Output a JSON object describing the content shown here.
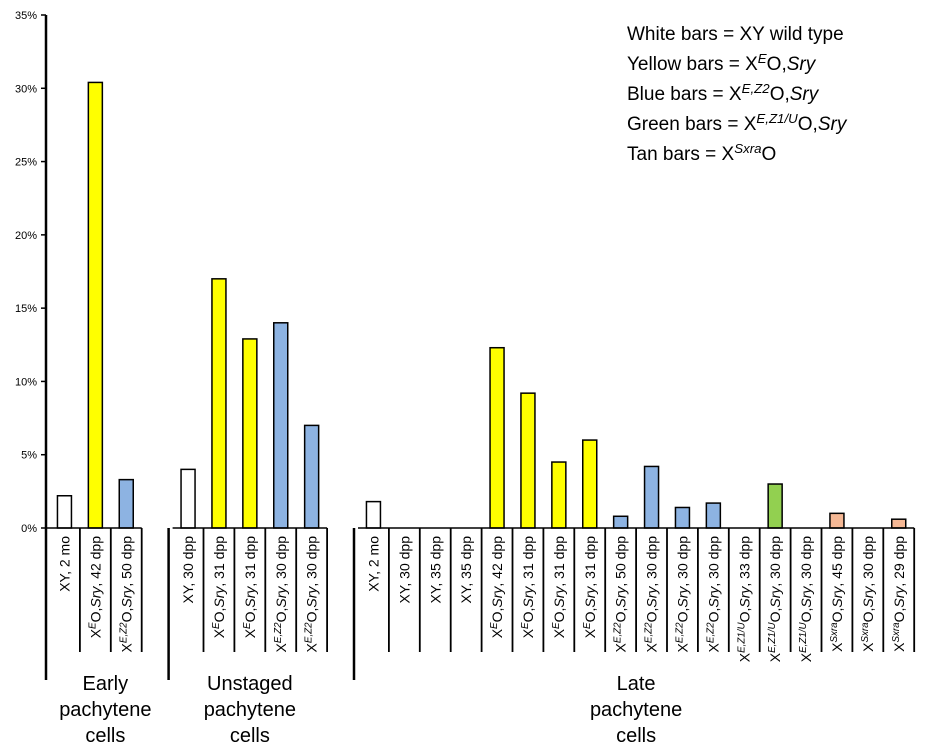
{
  "chart_data": {
    "type": "bar",
    "ylim": [
      0,
      35
    ],
    "yticks": [
      "0%",
      "5%",
      "10%",
      "15%",
      "20%",
      "25%",
      "30%",
      "35%"
    ],
    "grid": false,
    "legend_position": "top-right",
    "colors": {
      "white": "#ffffff",
      "yellow": "#ffff00",
      "blue": "#8db3e2",
      "green": "#92d050",
      "tan": "#f5b895"
    },
    "legend": [
      {
        "parts": [
          {
            "t": "White bars = XY wild type"
          }
        ]
      },
      {
        "parts": [
          {
            "t": "Yellow bars = X"
          },
          {
            "t": "E",
            "sup": true,
            "i": true
          },
          {
            "t": "O,"
          },
          {
            "t": "Sry",
            "i": true
          }
        ]
      },
      {
        "parts": [
          {
            "t": "Blue bars = X"
          },
          {
            "t": "E,Z2",
            "sup": true,
            "i": true
          },
          {
            "t": "O,"
          },
          {
            "t": "Sry",
            "i": true
          }
        ]
      },
      {
        "parts": [
          {
            "t": "Green bars = X"
          },
          {
            "t": "E,Z1/U",
            "sup": true,
            "i": true
          },
          {
            "t": "O,"
          },
          {
            "t": "Sry",
            "i": true
          }
        ]
      },
      {
        "parts": [
          {
            "t": "Tan bars = X"
          },
          {
            "t": "Sxra",
            "sup": true,
            "i": true
          },
          {
            "t": "O"
          }
        ]
      }
    ],
    "groups": [
      {
        "label_lines": [
          "Early",
          "pachytene",
          "cells"
        ],
        "bars": [
          {
            "value": 2.2,
            "color": "white",
            "label": [
              {
                "t": "XY, 2 mo"
              }
            ]
          },
          {
            "value": 30.4,
            "color": "yellow",
            "label": [
              {
                "t": "X"
              },
              {
                "t": "E",
                "sup": true,
                "i": true
              },
              {
                "t": "O,"
              },
              {
                "t": "Sry",
                "i": true
              },
              {
                "t": ", 42 dpp"
              }
            ]
          },
          {
            "value": 3.3,
            "color": "blue",
            "label": [
              {
                "t": "X"
              },
              {
                "t": "E,Z2",
                "sup": true,
                "i": true
              },
              {
                "t": "O,"
              },
              {
                "t": "Sry",
                "i": true
              },
              {
                "t": ", 50 dpp"
              }
            ]
          }
        ]
      },
      {
        "label_lines": [
          "Unstaged",
          "pachytene",
          "cells"
        ],
        "bars": [
          {
            "value": 4.0,
            "color": "white",
            "label": [
              {
                "t": "XY, 30 dpp"
              }
            ]
          },
          {
            "value": 17.0,
            "color": "yellow",
            "label": [
              {
                "t": "X"
              },
              {
                "t": "E",
                "sup": true,
                "i": true
              },
              {
                "t": "O,"
              },
              {
                "t": "Sry",
                "i": true
              },
              {
                "t": ", 31 dpp"
              }
            ]
          },
          {
            "value": 12.9,
            "color": "yellow",
            "label": [
              {
                "t": "X"
              },
              {
                "t": "E",
                "sup": true,
                "i": true
              },
              {
                "t": "O,"
              },
              {
                "t": "Sry",
                "i": true
              },
              {
                "t": ", 31 dpp"
              }
            ]
          },
          {
            "value": 14.0,
            "color": "blue",
            "label": [
              {
                "t": "X"
              },
              {
                "t": "E,Z2",
                "sup": true,
                "i": true
              },
              {
                "t": "O,"
              },
              {
                "t": "Sry",
                "i": true
              },
              {
                "t": ", 30 dpp"
              }
            ]
          },
          {
            "value": 7.0,
            "color": "blue",
            "label": [
              {
                "t": "X"
              },
              {
                "t": "E,Z2",
                "sup": true,
                "i": true
              },
              {
                "t": "O,"
              },
              {
                "t": "Sry",
                "i": true
              },
              {
                "t": ", 30 dpp"
              }
            ]
          }
        ]
      },
      {
        "label_lines": [
          "Late",
          "pachytene",
          "cells"
        ],
        "bars": [
          {
            "value": 1.8,
            "color": "white",
            "label": [
              {
                "t": "XY, 2 mo"
              }
            ]
          },
          {
            "value": 0,
            "color": "white",
            "label": [
              {
                "t": "XY, 30 dpp"
              }
            ]
          },
          {
            "value": 0,
            "color": "white",
            "label": [
              {
                "t": "XY, 35 dpp"
              }
            ]
          },
          {
            "value": 0,
            "color": "white",
            "label": [
              {
                "t": "XY, 35 dpp"
              }
            ]
          },
          {
            "value": 12.3,
            "color": "yellow",
            "label": [
              {
                "t": "X"
              },
              {
                "t": "E",
                "sup": true,
                "i": true
              },
              {
                "t": "O,"
              },
              {
                "t": "Sry",
                "i": true
              },
              {
                "t": ", 42 dpp"
              }
            ]
          },
          {
            "value": 9.2,
            "color": "yellow",
            "label": [
              {
                "t": "X"
              },
              {
                "t": "E",
                "sup": true,
                "i": true
              },
              {
                "t": "O,"
              },
              {
                "t": "Sry",
                "i": true
              },
              {
                "t": ", 31 dpp"
              }
            ]
          },
          {
            "value": 4.5,
            "color": "yellow",
            "label": [
              {
                "t": "X"
              },
              {
                "t": "E",
                "sup": true,
                "i": true
              },
              {
                "t": "O,"
              },
              {
                "t": "Sry",
                "i": true
              },
              {
                "t": ", 31 dpp"
              }
            ]
          },
          {
            "value": 6.0,
            "color": "yellow",
            "label": [
              {
                "t": "X"
              },
              {
                "t": "E",
                "sup": true,
                "i": true
              },
              {
                "t": "O,"
              },
              {
                "t": "Sry",
                "i": true
              },
              {
                "t": ", 31 dpp"
              }
            ]
          },
          {
            "value": 0.8,
            "color": "blue",
            "label": [
              {
                "t": "X"
              },
              {
                "t": "E,Z2",
                "sup": true,
                "i": true
              },
              {
                "t": "O,"
              },
              {
                "t": "Sry",
                "i": true
              },
              {
                "t": ", 50 dpp"
              }
            ]
          },
          {
            "value": 4.2,
            "color": "blue",
            "label": [
              {
                "t": "X"
              },
              {
                "t": "E,Z2",
                "sup": true,
                "i": true
              },
              {
                "t": "O,"
              },
              {
                "t": "Sry",
                "i": true
              },
              {
                "t": ", 30 dpp"
              }
            ]
          },
          {
            "value": 1.4,
            "color": "blue",
            "label": [
              {
                "t": "X"
              },
              {
                "t": "E,Z2",
                "sup": true,
                "i": true
              },
              {
                "t": "O,"
              },
              {
                "t": "Sry",
                "i": true
              },
              {
                "t": ", 30 dpp"
              }
            ]
          },
          {
            "value": 1.7,
            "color": "blue",
            "label": [
              {
                "t": "X"
              },
              {
                "t": "E,Z2",
                "sup": true,
                "i": true
              },
              {
                "t": "O,"
              },
              {
                "t": "Sry",
                "i": true
              },
              {
                "t": ", 30 dpp"
              }
            ]
          },
          {
            "value": 0,
            "color": "green",
            "label": [
              {
                "t": "X"
              },
              {
                "t": "E,Z1/U",
                "sup": true,
                "i": true
              },
              {
                "t": "O,"
              },
              {
                "t": "Sry",
                "i": true
              },
              {
                "t": ", 33 dpp"
              }
            ]
          },
          {
            "value": 3.0,
            "color": "green",
            "label": [
              {
                "t": "X"
              },
              {
                "t": "E,Z1/U",
                "sup": true,
                "i": true
              },
              {
                "t": "O,"
              },
              {
                "t": "Sry",
                "i": true
              },
              {
                "t": ", 30 dpp"
              }
            ]
          },
          {
            "value": 0,
            "color": "green",
            "label": [
              {
                "t": "X"
              },
              {
                "t": "E,Z1/U",
                "sup": true,
                "i": true
              },
              {
                "t": "O,"
              },
              {
                "t": "Sry",
                "i": true
              },
              {
                "t": ", 30 dpp"
              }
            ]
          },
          {
            "value": 1.0,
            "color": "tan",
            "label": [
              {
                "t": "X"
              },
              {
                "t": "Sxra",
                "sup": true,
                "i": true
              },
              {
                "t": "O,"
              },
              {
                "t": "Sry",
                "i": true
              },
              {
                "t": ", 45 dpp"
              }
            ]
          },
          {
            "value": 0,
            "color": "tan",
            "label": [
              {
                "t": "X"
              },
              {
                "t": "Sxra",
                "sup": true,
                "i": true
              },
              {
                "t": "O,"
              },
              {
                "t": "Sry",
                "i": true
              },
              {
                "t": ", 30 dpp"
              }
            ]
          },
          {
            "value": 0.6,
            "color": "tan",
            "label": [
              {
                "t": "X"
              },
              {
                "t": "Sxra",
                "sup": true,
                "i": true
              },
              {
                "t": "O,"
              },
              {
                "t": "Sry",
                "i": true
              },
              {
                "t": ", 29 dpp"
              }
            ]
          }
        ]
      }
    ]
  }
}
